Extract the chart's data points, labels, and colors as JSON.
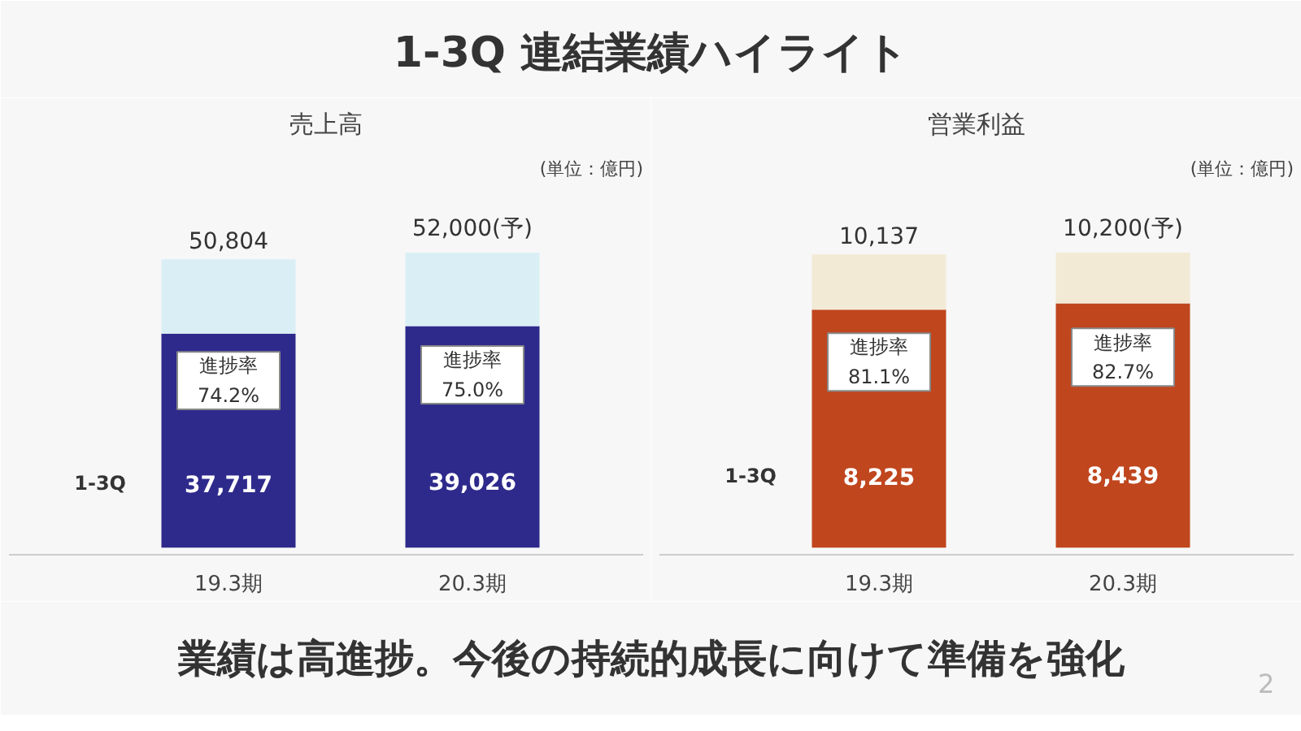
{
  "chart_data": [
    {
      "type": "other",
      "title": "1-3Q 連結業績ハイライト",
      "annotations": [
        "業績は高進捗。今後の持続的成長に向けて準備を強化",
        "2"
      ]
    },
    {
      "type": "bar",
      "title": "売上高",
      "subtitle": "(単位：億円)",
      "categories": [
        "19.3期",
        "20.3期"
      ],
      "stacked": true,
      "series": [
        {
          "name": "1-3Q",
          "color": "#2e2a8c",
          "values": [
            37717,
            39026
          ],
          "value_labels": [
            "37,717",
            "39,026"
          ]
        },
        {
          "color": "#d9eff5",
          "values": [
            13087,
            12974
          ]
        }
      ],
      "totals": [
        "50,804",
        "52,000(予)"
      ],
      "annotations": [
        "進捗率\n74.2%",
        "進捗率\n75.0%"
      ]
    },
    {
      "type": "bar",
      "title": "営業利益",
      "subtitle": "(単位：億円)",
      "categories": [
        "19.3期",
        "20.3期"
      ],
      "stacked": true,
      "series": [
        {
          "name": "1-3Q",
          "color": "#c0461e",
          "values": [
            8225,
            8439
          ],
          "value_labels": [
            "8,225",
            "8,439"
          ]
        },
        {
          "color": "#f3ead6",
          "values": [
            1912,
            1761
          ]
        }
      ],
      "totals": [
        "10,137",
        "10,200(予)"
      ],
      "annotations": [
        "進捗率\n81.1%",
        "進捗率\n82.7%"
      ]
    }
  ]
}
